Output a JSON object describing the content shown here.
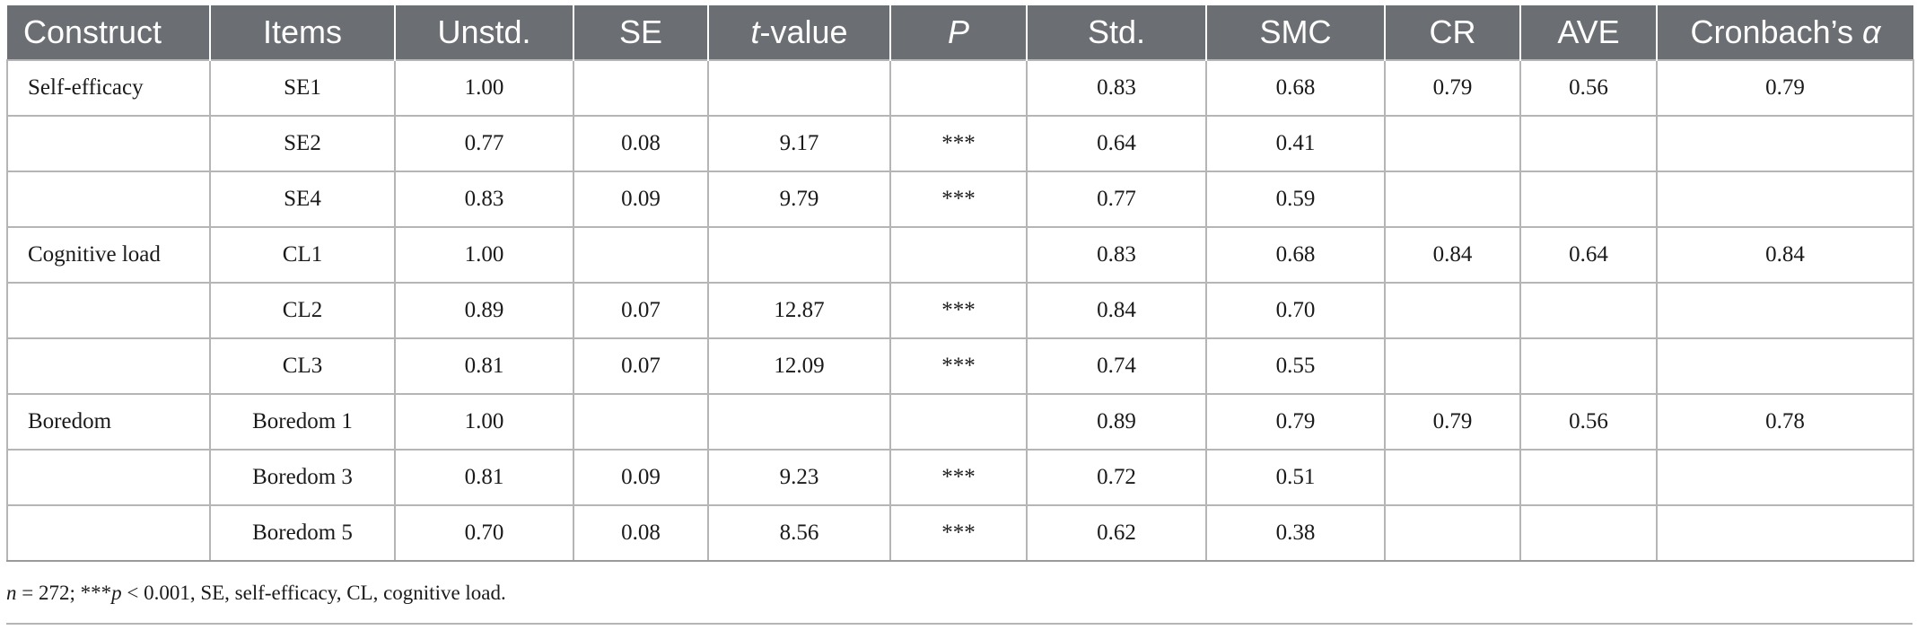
{
  "table": {
    "headers": {
      "construct": "Construct",
      "items": "Items",
      "unstd": "Unstd.",
      "se": "SE",
      "t_italic": "t",
      "t_rest": "-value",
      "p": "P",
      "std": "Std.",
      "smc": "SMC",
      "cr": "CR",
      "ave": "AVE",
      "alpha_text": "Cronbach’s ",
      "alpha_symbol": "α"
    },
    "rows": [
      {
        "construct": "Self-efficacy",
        "item": "SE1",
        "unstd": "1.00",
        "se": "",
        "t": "",
        "p": "",
        "std": "0.83",
        "smc": "0.68",
        "cr": "0.79",
        "ave": "0.56",
        "alpha": "0.79"
      },
      {
        "construct": "",
        "item": "SE2",
        "unstd": "0.77",
        "se": "0.08",
        "t": "9.17",
        "p": "***",
        "std": "0.64",
        "smc": "0.41",
        "cr": "",
        "ave": "",
        "alpha": ""
      },
      {
        "construct": "",
        "item": "SE4",
        "unstd": "0.83",
        "se": "0.09",
        "t": "9.79",
        "p": "***",
        "std": "0.77",
        "smc": "0.59",
        "cr": "",
        "ave": "",
        "alpha": ""
      },
      {
        "construct": "Cognitive load",
        "item": "CL1",
        "unstd": "1.00",
        "se": "",
        "t": "",
        "p": "",
        "std": "0.83",
        "smc": "0.68",
        "cr": "0.84",
        "ave": "0.64",
        "alpha": "0.84"
      },
      {
        "construct": "",
        "item": "CL2",
        "unstd": "0.89",
        "se": "0.07",
        "t": "12.87",
        "p": "***",
        "std": "0.84",
        "smc": "0.70",
        "cr": "",
        "ave": "",
        "alpha": ""
      },
      {
        "construct": "",
        "item": "CL3",
        "unstd": "0.81",
        "se": "0.07",
        "t": "12.09",
        "p": "***",
        "std": "0.74",
        "smc": "0.55",
        "cr": "",
        "ave": "",
        "alpha": ""
      },
      {
        "construct": "Boredom",
        "item": "Boredom 1",
        "unstd": "1.00",
        "se": "",
        "t": "",
        "p": "",
        "std": "0.89",
        "smc": "0.79",
        "cr": "0.79",
        "ave": "0.56",
        "alpha": "0.78"
      },
      {
        "construct": "",
        "item": "Boredom 3",
        "unstd": "0.81",
        "se": "0.09",
        "t": "9.23",
        "p": "***",
        "std": "0.72",
        "smc": "0.51",
        "cr": "",
        "ave": "",
        "alpha": ""
      },
      {
        "construct": "",
        "item": "Boredom 5",
        "unstd": "0.70",
        "se": "0.08",
        "t": "8.56",
        "p": "***",
        "std": "0.62",
        "smc": "0.38",
        "cr": "",
        "ave": "",
        "alpha": ""
      }
    ]
  },
  "note": {
    "n_italic": "n",
    "part1": " = 272; ***",
    "p_italic": "p",
    "part2": " < 0.001, SE, self-efficacy, CL, cognitive load."
  },
  "colors": {
    "header_bg": "#6b6f73",
    "header_text": "#ffffff",
    "grid": "#b5b5b5"
  }
}
